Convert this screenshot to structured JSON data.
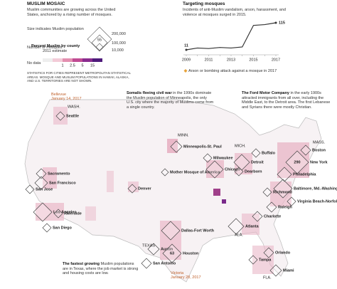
{
  "header": {
    "title": "MUSLIM MOSAIC",
    "description": "Muslim communities are growing across the United States, anchored by a rising number of mosques."
  },
  "size_legend": {
    "title": "Size indicates Muslim population",
    "sample_mosques": 55,
    "mosques_label": "Number of mosques",
    "population_labels": [
      "200,000",
      "100,000",
      "10,000"
    ]
  },
  "color_legend": {
    "title": "Percent Muslim by county",
    "subtitle": "2011 estimate",
    "no_data": "No data",
    "labels": [
      "1",
      "2.5",
      "5",
      "15"
    ]
  },
  "note": "STATISTICS FOR CITIES REPRESENT METROPOLITAN STATISTICAL AREAS. MOSQUE AND MUSLIM POPULATIONS IN HAWAII, ALASKA, AND U.S. TERRITORIES ARE NOT SHOWN.",
  "chart_data": {
    "type": "line",
    "title": "Targeting mosques",
    "subtitle": "Incidents of anti-Muslim vandalism, arson, harassment, and violence at mosques surged in 2015.",
    "categories": [
      "2009",
      null,
      "2011",
      null,
      "2013",
      null,
      "2015",
      null,
      "2017"
    ],
    "values": [
      11,
      18,
      16,
      20,
      18,
      22,
      105,
      108,
      115
    ],
    "value_labels": [
      "11",
      null,
      null,
      null,
      null,
      null,
      null,
      null,
      "115"
    ],
    "color": "#333333",
    "legend_note": "Arson or bombing attack against a mosque in 2017",
    "marker_color": "#e8a33a"
  },
  "attacks": [
    {
      "city": "Bellevue",
      "date": "January 14, 2017"
    },
    {
      "city": "Victoria",
      "date": "January 28, 2017"
    }
  ],
  "stories": [
    {
      "lead": "Somalis fleeing civil war",
      "text": "in the 1990s dominate the Muslim population of Minneapolis, the only U.S. city where the majority of Muslims come from a single country."
    },
    {
      "lead": "The Ford Motor Company",
      "text": "in the early 1900s attracted immigrants from all over, including the Middle East, to the Detroit area. The first Lebanese and Syrians there were mostly Christian."
    },
    {
      "lead": "The fastest growing",
      "text": "Muslim populations are in Texas, where the job market is strong and housing costs are low."
    }
  ],
  "cities": [
    {
      "name": "Seattle"
    },
    {
      "name": "Sacramento"
    },
    {
      "name": "San Francisco"
    },
    {
      "name": "San Jose"
    },
    {
      "name": "Los Angeles"
    },
    {
      "name": "Riverside"
    },
    {
      "name": "San Diego"
    },
    {
      "name": "Denver"
    },
    {
      "name": "Minneapolis-St. Paul"
    },
    {
      "name": "Mother Mosque of America"
    },
    {
      "name": "Chicago"
    },
    {
      "name": "Milwaukee"
    },
    {
      "name": "Detroit"
    },
    {
      "name": "Dearborn"
    },
    {
      "name": "Buffalo"
    },
    {
      "name": "Boston"
    },
    {
      "name": "New York",
      "mosques": 290
    },
    {
      "name": "Philadelphia"
    },
    {
      "name": "Baltimore, Md.-Washington, D.C."
    },
    {
      "name": "Richmond"
    },
    {
      "name": "Virginia Beach-Norfolk"
    },
    {
      "name": "Raleigh"
    },
    {
      "name": "Charlotte"
    },
    {
      "name": "Atlanta"
    },
    {
      "name": "Dallas-Fort Worth"
    },
    {
      "name": "Austin"
    },
    {
      "name": "Houston",
      "mosques": 63
    },
    {
      "name": "San Antonio"
    },
    {
      "name": "Tampa"
    },
    {
      "name": "Orlando"
    },
    {
      "name": "Miami"
    }
  ],
  "state_labels": [
    "WASH.",
    "MINN.",
    "MICH.",
    "TEXAS",
    "ALA.",
    "MASS.",
    "FLA."
  ]
}
